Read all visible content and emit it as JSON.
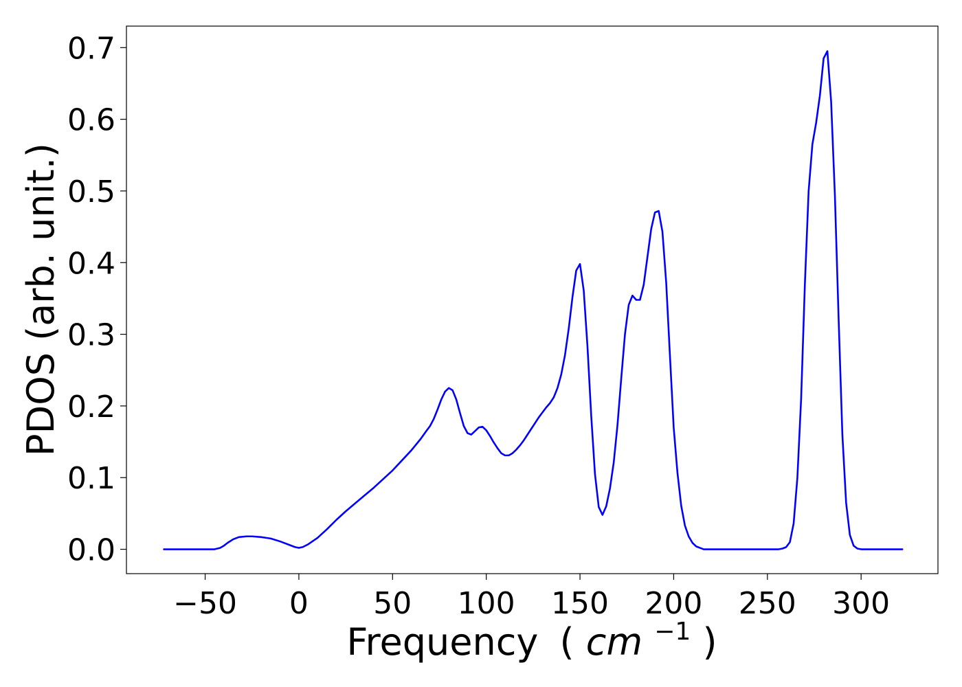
{
  "chart_data": {
    "type": "line",
    "title": "",
    "xlabel": "Frequency",
    "xlabel_unit_open": "(",
    "xlabel_unit_math": "cm",
    "xlabel_unit_exp": "−1",
    "xlabel_unit_close": ")",
    "ylabel": "PDOS (arb. unit.)",
    "xlim": [
      -92,
      341
    ],
    "ylim": [
      -0.034,
      0.73
    ],
    "x_ticks": [
      {
        "value": -50,
        "label": "−50"
      },
      {
        "value": 0,
        "label": "0"
      },
      {
        "value": 50,
        "label": "50"
      },
      {
        "value": 100,
        "label": "100"
      },
      {
        "value": 150,
        "label": "150"
      },
      {
        "value": 200,
        "label": "200"
      },
      {
        "value": 250,
        "label": "250"
      },
      {
        "value": 300,
        "label": "300"
      }
    ],
    "y_ticks": [
      {
        "value": 0.0,
        "label": "0.0"
      },
      {
        "value": 0.1,
        "label": "0.1"
      },
      {
        "value": 0.2,
        "label": "0.2"
      },
      {
        "value": 0.3,
        "label": "0.3"
      },
      {
        "value": 0.4,
        "label": "0.4"
      },
      {
        "value": 0.5,
        "label": "0.5"
      },
      {
        "value": 0.6,
        "label": "0.6"
      },
      {
        "value": 0.7,
        "label": "0.7"
      }
    ],
    "grid": false,
    "legend": false,
    "series": [
      {
        "color": "#0000ff",
        "x": [
          -72,
          -60,
          -50,
          -45,
          -42,
          -40,
          -38,
          -35,
          -32,
          -28,
          -25,
          -20,
          -15,
          -10,
          -5,
          -2,
          0,
          2,
          5,
          10,
          15,
          20,
          25,
          30,
          35,
          40,
          45,
          50,
          55,
          60,
          65,
          68,
          70,
          72,
          74,
          76,
          78,
          80,
          82,
          84,
          86,
          88,
          90,
          92,
          94,
          96,
          98,
          100,
          102,
          104,
          106,
          108,
          110,
          112,
          114,
          116,
          118,
          120,
          122,
          124,
          126,
          128,
          130,
          132,
          134,
          136,
          138,
          140,
          142,
          144,
          146,
          148,
          150,
          152,
          154,
          156,
          158,
          160,
          162,
          164,
          166,
          168,
          170,
          172,
          174,
          176,
          178,
          180,
          182,
          184,
          186,
          188,
          190,
          192,
          194,
          196,
          198,
          200,
          202,
          204,
          206,
          208,
          210,
          212,
          214,
          216,
          220,
          230,
          240,
          250,
          256,
          258,
          260,
          262,
          264,
          266,
          268,
          270,
          272,
          274,
          276,
          278,
          280,
          282,
          284,
          286,
          288,
          290,
          292,
          294,
          296,
          298,
          300,
          310,
          322
        ],
        "y": [
          0.0,
          0.0,
          0.0,
          0.0,
          0.002,
          0.005,
          0.009,
          0.014,
          0.017,
          0.018,
          0.018,
          0.017,
          0.015,
          0.011,
          0.006,
          0.003,
          0.002,
          0.003,
          0.007,
          0.016,
          0.028,
          0.041,
          0.053,
          0.064,
          0.075,
          0.086,
          0.098,
          0.11,
          0.124,
          0.138,
          0.154,
          0.165,
          0.172,
          0.182,
          0.195,
          0.209,
          0.22,
          0.225,
          0.222,
          0.209,
          0.19,
          0.172,
          0.162,
          0.16,
          0.165,
          0.17,
          0.171,
          0.166,
          0.158,
          0.149,
          0.141,
          0.134,
          0.131,
          0.131,
          0.134,
          0.139,
          0.145,
          0.152,
          0.16,
          0.168,
          0.176,
          0.184,
          0.191,
          0.198,
          0.204,
          0.212,
          0.225,
          0.244,
          0.271,
          0.308,
          0.352,
          0.389,
          0.398,
          0.361,
          0.283,
          0.186,
          0.105,
          0.059,
          0.048,
          0.06,
          0.085,
          0.121,
          0.173,
          0.238,
          0.3,
          0.341,
          0.354,
          0.348,
          0.348,
          0.369,
          0.408,
          0.447,
          0.47,
          0.472,
          0.443,
          0.372,
          0.27,
          0.17,
          0.107,
          0.061,
          0.033,
          0.018,
          0.009,
          0.004,
          0.002,
          0.0,
          0.0,
          0.0,
          0.0,
          0.0,
          0.0,
          0.001,
          0.003,
          0.01,
          0.036,
          0.1,
          0.21,
          0.37,
          0.5,
          0.565,
          0.595,
          0.633,
          0.685,
          0.695,
          0.625,
          0.495,
          0.322,
          0.16,
          0.065,
          0.02,
          0.005,
          0.001,
          0.0,
          0.0,
          0.0
        ]
      }
    ]
  }
}
